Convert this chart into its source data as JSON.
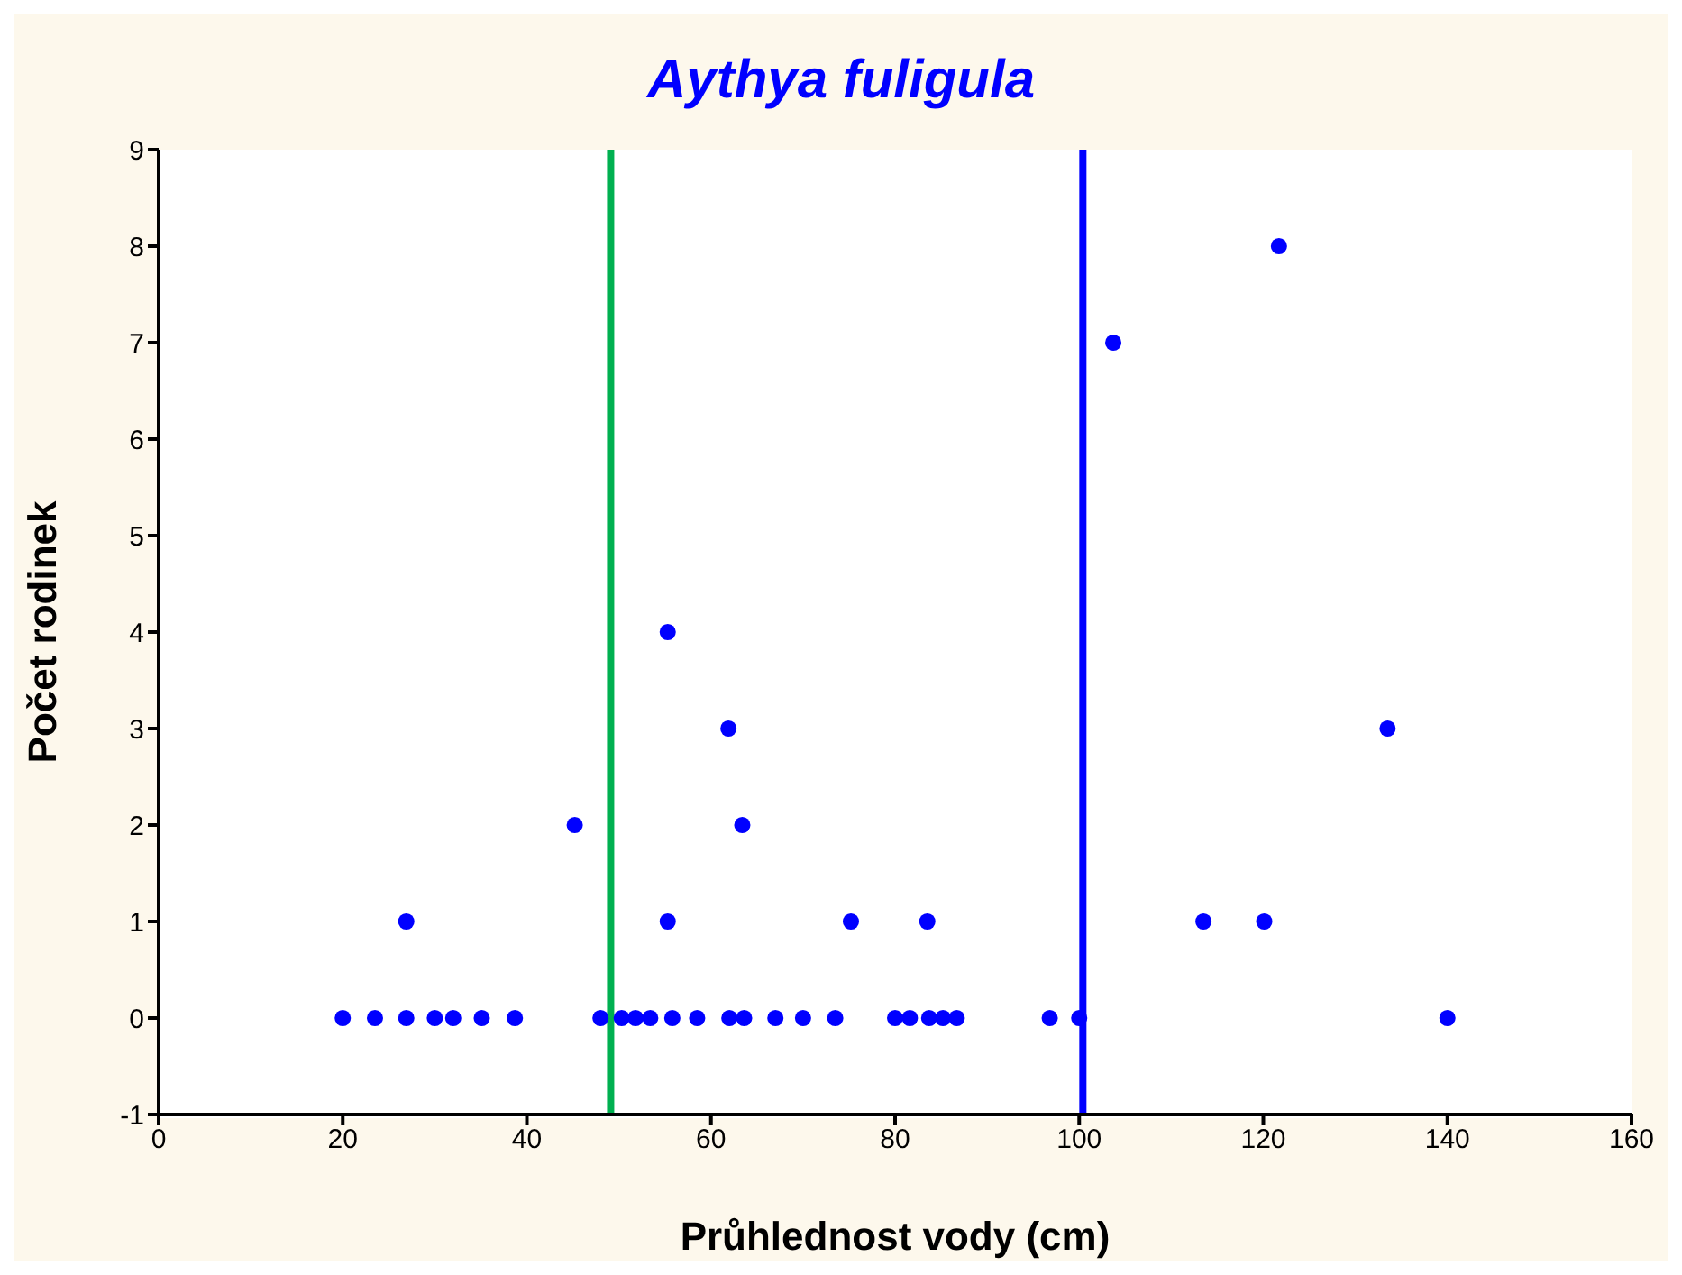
{
  "chart_data": {
    "type": "scatter",
    "title": "Aythya fuligula",
    "xlabel": "Průhlednost vody (cm)",
    "ylabel": "Počet rodinek",
    "x": [
      20,
      23.5,
      26.9,
      30,
      32,
      35.1,
      38.7,
      48,
      50.3,
      51.8,
      53.4,
      55.8,
      58.5,
      62,
      63.6,
      67,
      70,
      73.5,
      80,
      81.6,
      83.7,
      85.2,
      86.7,
      96.8,
      100,
      140,
      26.9,
      55.3,
      75.2,
      83.5,
      113.5,
      120.1,
      45.2,
      55.3,
      61.9,
      63.4,
      103.7,
      121.7,
      133.5
    ],
    "series": [
      {
        "color": "#0000ff",
        "values": [
          0,
          0,
          0,
          0,
          0,
          0,
          0,
          0,
          0,
          0,
          0,
          0,
          0,
          0,
          0,
          0,
          0,
          0,
          0,
          0,
          0,
          0,
          0,
          0,
          0,
          0,
          1,
          1,
          1,
          1,
          1,
          1,
          2,
          4,
          3,
          2,
          7,
          8,
          3
        ]
      }
    ],
    "xlim": [
      0,
      160
    ],
    "xticks": [
      0,
      20,
      40,
      60,
      80,
      100,
      120,
      140,
      160
    ],
    "ylim": [
      -1,
      9
    ],
    "yticks": [
      -1,
      0,
      1,
      2,
      3,
      4,
      5,
      6,
      7,
      8,
      9
    ],
    "ref_lines": [
      {
        "axis": "x",
        "value": 49.1,
        "color": "#00b050"
      },
      {
        "axis": "x",
        "value": 100.4,
        "color": "#0000ff"
      }
    ],
    "marker": "circle",
    "grid": false,
    "legend": false
  }
}
